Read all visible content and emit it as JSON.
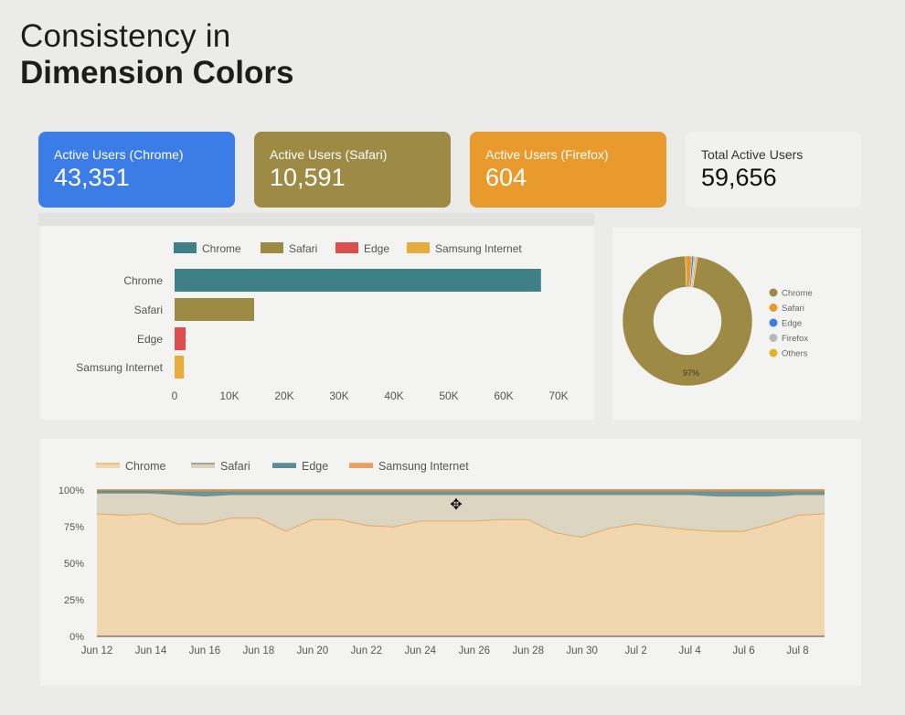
{
  "header": {
    "line1": "Consistency in",
    "line2": "Dimension Colors"
  },
  "kpis": [
    {
      "label": "Active Users (Chrome)",
      "value": "43,351",
      "color": "#3b7ce6"
    },
    {
      "label": "Active Users (Safari)",
      "value": "10,591",
      "color": "#9d8a45"
    },
    {
      "label": "Active Users (Firefox)",
      "value": "604",
      "color": "#e89a2d"
    },
    {
      "label": "Total Active Users",
      "value": "59,656"
    }
  ],
  "colors": {
    "chrome_bar": "#3f7f86",
    "safari": "#9d8a45",
    "edge": "#df4e4e",
    "samsung": "#e8ac3c",
    "firefox": "#b7b7b7",
    "others": "#e6b83a",
    "donut_chrome": "#9d8a45",
    "donut_safari": "#e89a2d",
    "donut_edge": "#3b7ce6",
    "donut_firefox": "#b9b9b9",
    "donut_others": "#e5b12c",
    "area_chrome": "#f0d7b0",
    "area_safari": "#d9d2bd",
    "area_edge": "#5a8d96",
    "area_samsung": "#e9a060"
  },
  "chart_data": [
    {
      "type": "bar",
      "orientation": "horizontal",
      "legend": [
        "Chrome",
        "Safari",
        "Edge",
        "Samsung Internet"
      ],
      "legend_position": "top",
      "categories": [
        "Chrome",
        "Safari",
        "Edge",
        "Samsung Internet"
      ],
      "values": [
        66800,
        14500,
        2000,
        1700
      ],
      "xticks": [
        "0",
        "10K",
        "20K",
        "30K",
        "40K",
        "50K",
        "60K",
        "70K"
      ],
      "xlim": [
        0,
        72000
      ]
    },
    {
      "type": "pie",
      "donut": true,
      "labels": [
        "Chrome",
        "Safari",
        "Edge",
        "Firefox",
        "Others"
      ],
      "values": [
        97,
        1.6,
        0.5,
        0.4,
        0.5
      ],
      "slice_label": "97%",
      "legend_position": "right"
    },
    {
      "type": "area",
      "stacked_percent": true,
      "legend": [
        "Chrome",
        "Safari",
        "Edge",
        "Samsung Internet"
      ],
      "legend_position": "top",
      "x_labels": [
        "Jun 12",
        "Jun 14",
        "Jun 16",
        "Jun 18",
        "Jun 20",
        "Jun 22",
        "Jun 24",
        "Jun 26",
        "Jun 28",
        "Jun 30",
        "Jul 2",
        "Jul 4",
        "Jul 6",
        "Jul 8"
      ],
      "yticks": [
        "0%",
        "25%",
        "50%",
        "75%",
        "100%"
      ],
      "ylim": [
        0,
        100
      ],
      "x": [
        "Jun 12",
        "Jun 13",
        "Jun 14",
        "Jun 15",
        "Jun 16",
        "Jun 17",
        "Jun 18",
        "Jun 19",
        "Jun 20",
        "Jun 21",
        "Jun 22",
        "Jun 23",
        "Jun 24",
        "Jun 25",
        "Jun 26",
        "Jun 27",
        "Jun 28",
        "Jun 29",
        "Jun 30",
        "Jul 1",
        "Jul 2",
        "Jul 3",
        "Jul 4",
        "Jul 5",
        "Jul 6",
        "Jul 7",
        "Jul 8",
        "Jul 9"
      ],
      "series": [
        {
          "name": "Chrome",
          "values": [
            84,
            83,
            84,
            77,
            77,
            81,
            81,
            72,
            80,
            80,
            76,
            75,
            79,
            79,
            79,
            80,
            80,
            71,
            68,
            74,
            77,
            75,
            73,
            72,
            72,
            77,
            83,
            84
          ]
        },
        {
          "name": "Safari",
          "values": [
            14,
            15,
            14,
            20,
            19,
            16,
            16,
            25,
            17,
            17,
            21,
            22,
            18,
            18,
            18,
            17,
            17,
            26,
            29,
            23,
            20,
            22,
            24,
            24,
            24,
            19,
            14,
            13
          ]
        },
        {
          "name": "Edge",
          "values": [
            1.5,
            1.5,
            1.5,
            2,
            3,
            2,
            2,
            2,
            2,
            2,
            2,
            2,
            2,
            2,
            2,
            2,
            2,
            2,
            2,
            2,
            2,
            2,
            2,
            3,
            3,
            3,
            2,
            2
          ]
        },
        {
          "name": "Samsung Internet",
          "values": [
            0.5,
            0.5,
            0.5,
            1,
            1,
            1,
            1,
            1,
            1,
            1,
            1,
            1,
            1,
            1,
            1,
            1,
            1,
            1,
            1,
            1,
            1,
            1,
            1,
            1,
            1,
            1,
            1,
            1
          ]
        }
      ]
    }
  ]
}
